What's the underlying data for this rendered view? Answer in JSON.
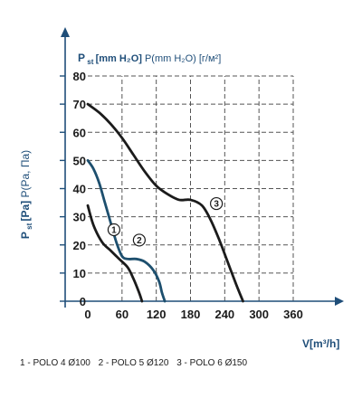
{
  "chart_data": {
    "type": "line",
    "ylabel": {
      "main": "P",
      "sub": "st",
      "bracket": "[Pa]",
      "rest": "P(Pa, Па)"
    },
    "ylabel2": {
      "main": "P",
      "sub": "st",
      "bracket": "[mm H₂O]",
      "rest": "P(mm H₂O) [г/м²]"
    },
    "xlabel": "V[m³/h]",
    "xlim": [
      0,
      360
    ],
    "ylim": [
      0,
      80
    ],
    "xticks": [
      0,
      60,
      120,
      180,
      240,
      300,
      360
    ],
    "yticks": [
      0,
      10,
      20,
      30,
      40,
      50,
      60,
      70,
      80
    ],
    "grid": true,
    "series": [
      {
        "label": "1",
        "color": "#1b1b1b",
        "points": [
          [
            0,
            34
          ],
          [
            10,
            27
          ],
          [
            25,
            21
          ],
          [
            40,
            18
          ],
          [
            55,
            15
          ],
          [
            70,
            12
          ],
          [
            80,
            8
          ],
          [
            90,
            3
          ],
          [
            95,
            0
          ]
        ]
      },
      {
        "label": "2",
        "color": "#1d4f6e",
        "points": [
          [
            0,
            50
          ],
          [
            10,
            47
          ],
          [
            20,
            42
          ],
          [
            30,
            35
          ],
          [
            40,
            28
          ],
          [
            50,
            21
          ],
          [
            60,
            16
          ],
          [
            70,
            15
          ],
          [
            85,
            15
          ],
          [
            100,
            14
          ],
          [
            115,
            11
          ],
          [
            125,
            7
          ],
          [
            130,
            3
          ],
          [
            135,
            0
          ]
        ]
      },
      {
        "label": "3",
        "color": "#1b1b1b",
        "points": [
          [
            0,
            70
          ],
          [
            20,
            67
          ],
          [
            40,
            63
          ],
          [
            60,
            58
          ],
          [
            80,
            52
          ],
          [
            100,
            46
          ],
          [
            120,
            41
          ],
          [
            140,
            38
          ],
          [
            160,
            36
          ],
          [
            180,
            36
          ],
          [
            200,
            34
          ],
          [
            215,
            29
          ],
          [
            230,
            22
          ],
          [
            245,
            14
          ],
          [
            260,
            6
          ],
          [
            272,
            0
          ]
        ]
      }
    ],
    "legend": [
      "1 - POLO 4 Ø100",
      "2 - POLO 5 Ø120",
      "3 - POLO 6 Ø150"
    ]
  }
}
